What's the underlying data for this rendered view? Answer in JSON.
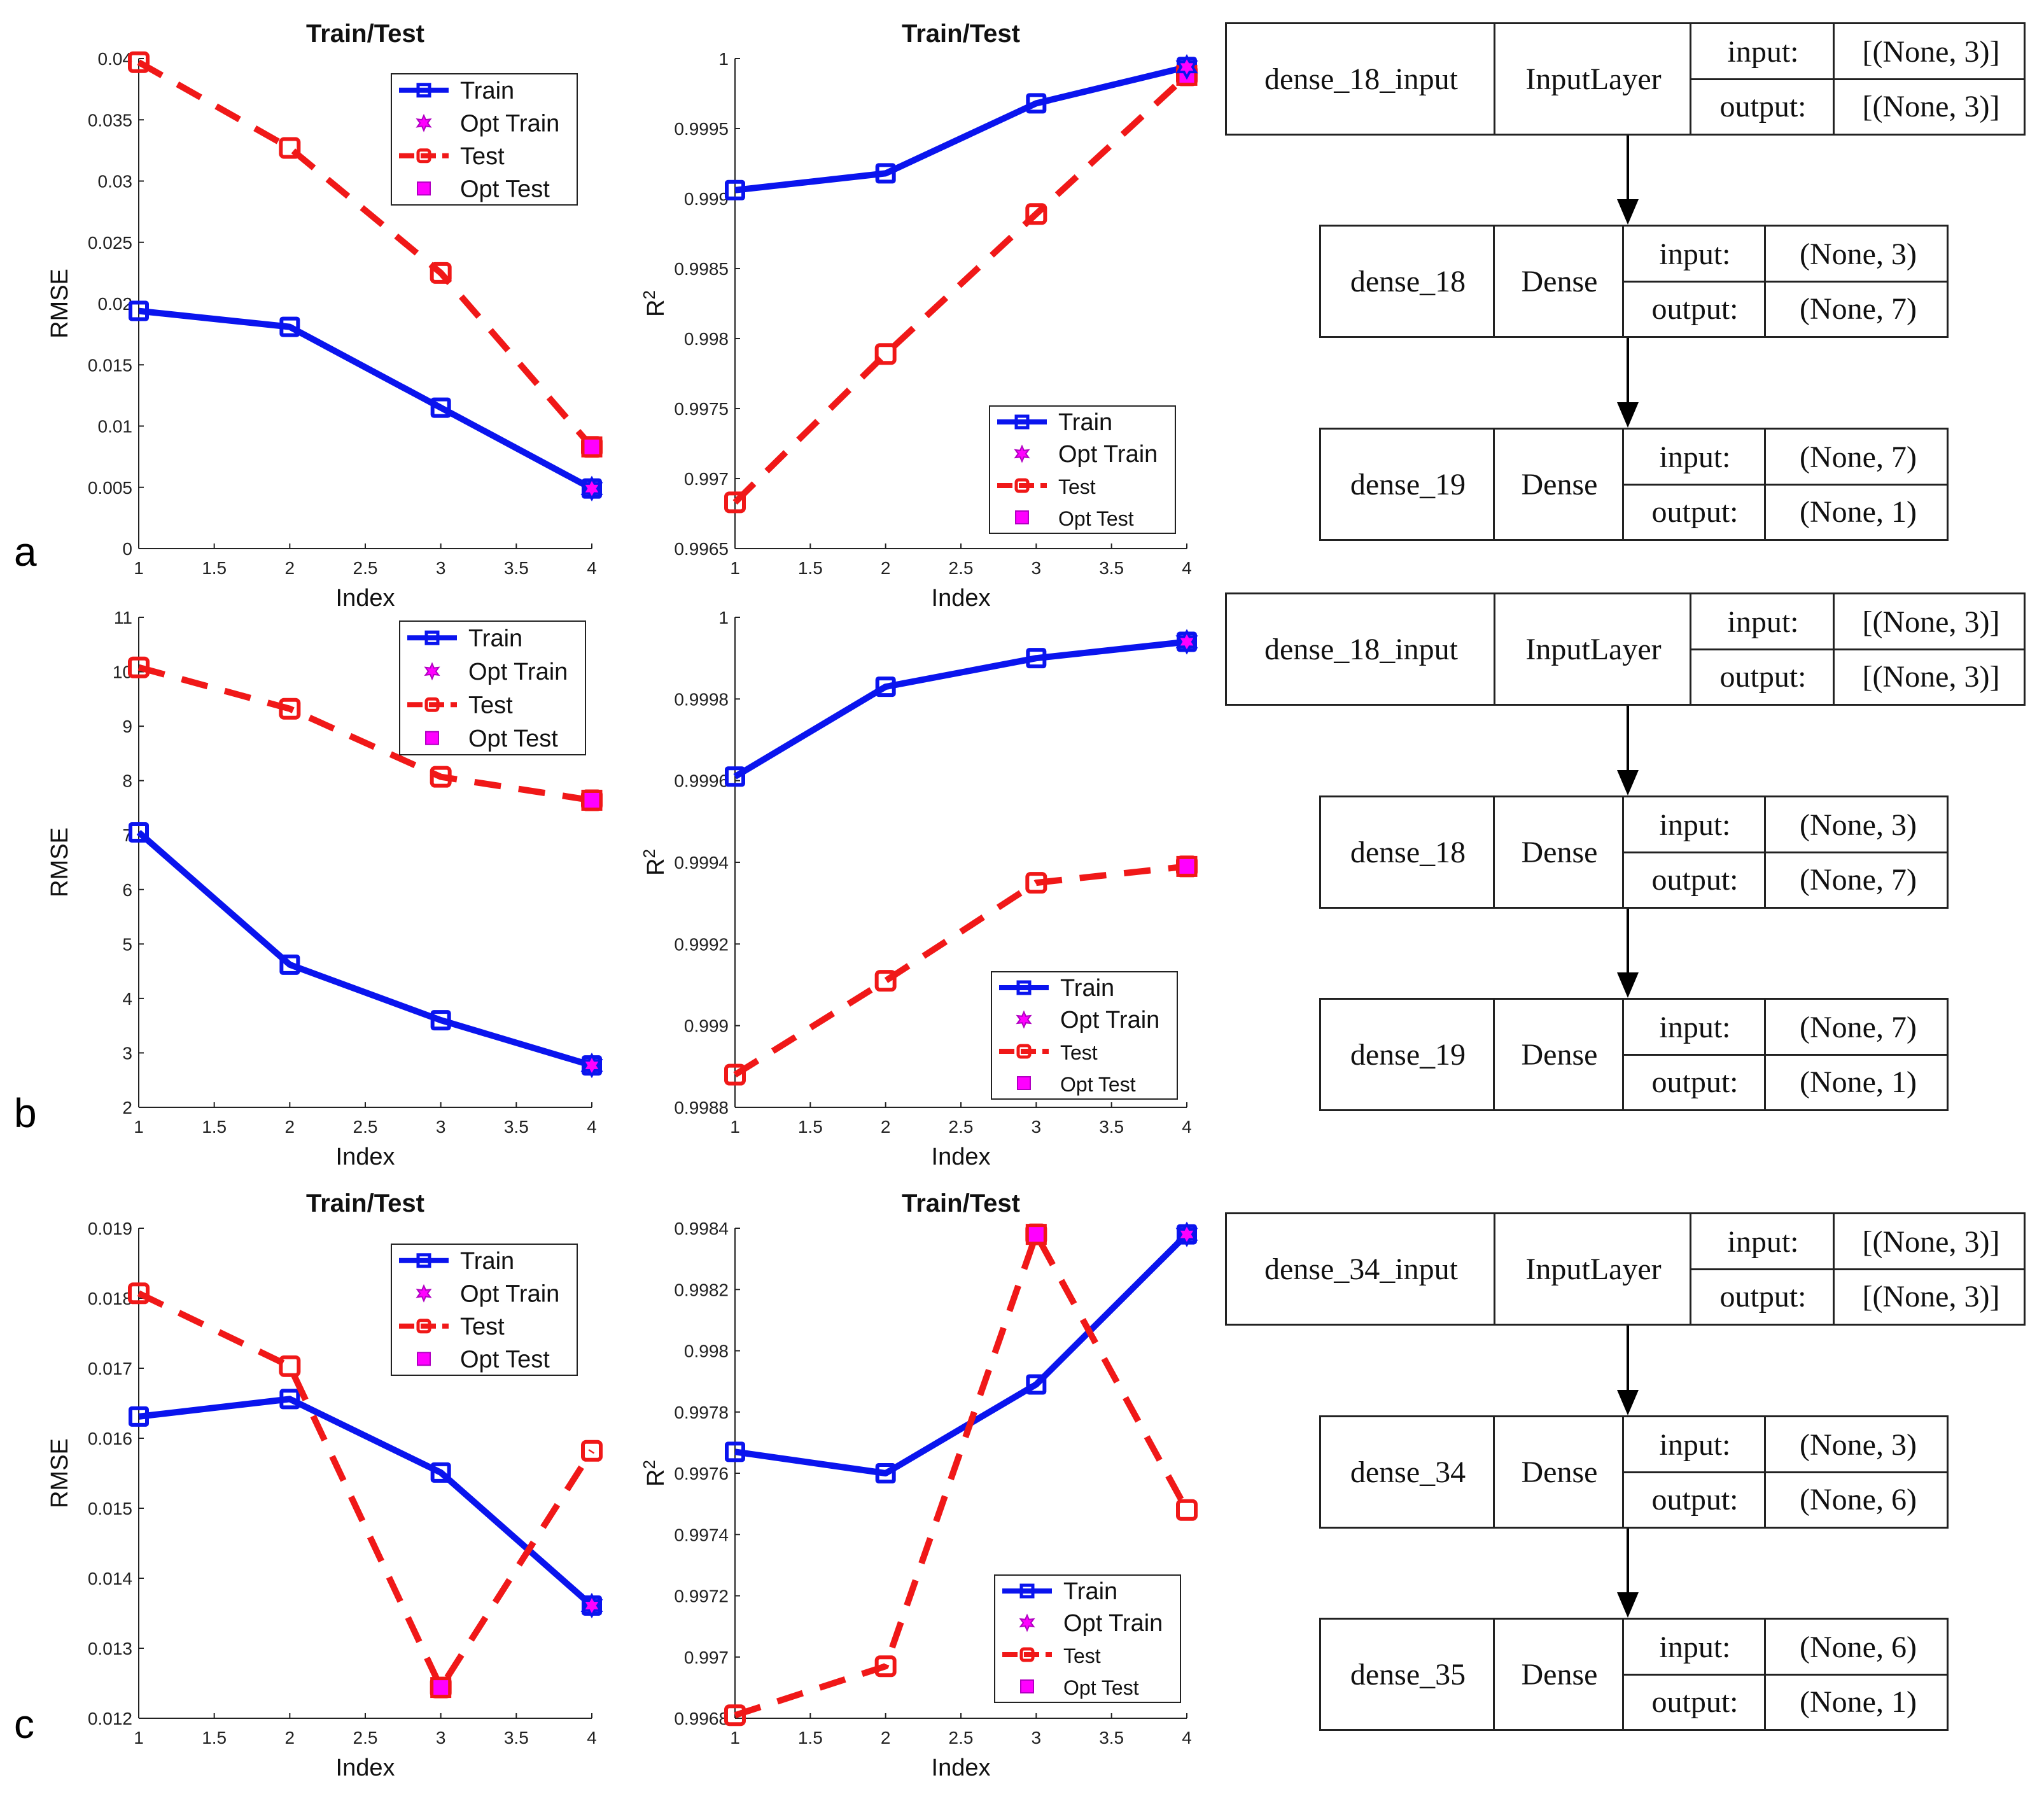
{
  "panel_labels": [
    "a",
    "b",
    "c"
  ],
  "chart_data": [
    {
      "id": "a-rmse",
      "type": "line",
      "title": "Train/Test",
      "xlabel": "Index",
      "ylabel": "RMSE",
      "x": [
        1,
        2,
        3,
        4
      ],
      "xlim": [
        1,
        4
      ],
      "ylim": [
        0,
        0.04
      ],
      "xticks": [
        "1",
        "1.5",
        "2",
        "2.5",
        "3",
        "3.5",
        "4"
      ],
      "yticks": [
        "0",
        "0.005",
        "0.01",
        "0.015",
        "0.02",
        "0.025",
        "0.03",
        "0.035",
        "0.04"
      ],
      "legend": [
        "Train",
        "Opt Train",
        "Test",
        "Opt Test"
      ],
      "legend_position": "top-right",
      "series": [
        {
          "name": "Train",
          "values": [
            0.0194,
            0.0181,
            0.0115,
            0.0049
          ]
        },
        {
          "name": "Test",
          "values": [
            0.0397,
            0.0327,
            0.0225,
            0.0083
          ]
        }
      ],
      "opt_train": {
        "x": 4,
        "y": 0.0049
      },
      "opt_test": {
        "x": 4,
        "y": 0.0083
      }
    },
    {
      "id": "a-r2",
      "type": "line",
      "title": "Train/Test",
      "xlabel": "Index",
      "ylabel": "R²",
      "x": [
        1,
        2,
        3,
        4
      ],
      "xlim": [
        1,
        4
      ],
      "ylim": [
        0.9965,
        1.0
      ],
      "xticks": [
        "1",
        "1.5",
        "2",
        "2.5",
        "3",
        "3.5",
        "4"
      ],
      "yticks": [
        "0.9965",
        "0.997",
        "0.9975",
        "0.998",
        "0.9985",
        "0.999",
        "0.9995",
        "1"
      ],
      "legend": [
        "Train",
        "Opt Train",
        "Test",
        "Opt Test"
      ],
      "legend_position": "bottom-right",
      "series": [
        {
          "name": "Train",
          "values": [
            0.99906,
            0.99918,
            0.99968,
            0.99994
          ]
        },
        {
          "name": "Test",
          "values": [
            0.99683,
            0.99789,
            0.99889,
            0.99988
          ]
        }
      ],
      "opt_train": {
        "x": 4,
        "y": 0.99994
      },
      "opt_test": {
        "x": 4,
        "y": 0.99988
      }
    },
    {
      "id": "b-rmse",
      "type": "line",
      "title": "",
      "xlabel": "Index",
      "ylabel": "RMSE",
      "x": [
        1,
        2,
        3,
        4
      ],
      "xlim": [
        1,
        4
      ],
      "ylim": [
        2,
        11
      ],
      "xticks": [
        "1",
        "1.5",
        "2",
        "2.5",
        "3",
        "3.5",
        "4"
      ],
      "yticks": [
        "2",
        "3",
        "4",
        "5",
        "6",
        "7",
        "8",
        "9",
        "10",
        "11"
      ],
      "legend": [
        "Train",
        "Opt Train",
        "Test",
        "Opt Test"
      ],
      "legend_position": "top-right",
      "series": [
        {
          "name": "Train",
          "values": [
            7.05,
            4.62,
            3.6,
            2.77
          ]
        },
        {
          "name": "Test",
          "values": [
            10.08,
            9.32,
            8.07,
            7.64
          ]
        }
      ],
      "opt_train": {
        "x": 4,
        "y": 2.77
      },
      "opt_test": {
        "x": 4,
        "y": 7.64
      }
    },
    {
      "id": "b-r2",
      "type": "line",
      "title": "",
      "xlabel": "Index",
      "ylabel": "R²",
      "x": [
        1,
        2,
        3,
        4
      ],
      "xlim": [
        1,
        4
      ],
      "ylim": [
        0.9988,
        1.0
      ],
      "xticks": [
        "1",
        "1.5",
        "2",
        "2.5",
        "3",
        "3.5",
        "4"
      ],
      "yticks": [
        "0.9988",
        "0.999",
        "0.9992",
        "0.9994",
        "0.9996",
        "0.9998",
        "1"
      ],
      "legend": [
        "Train",
        "Opt Train",
        "Test",
        "Opt Test"
      ],
      "legend_position": "bottom-right",
      "series": [
        {
          "name": "Train",
          "values": [
            0.99961,
            0.99983,
            0.9999,
            0.99994
          ]
        },
        {
          "name": "Test",
          "values": [
            0.99888,
            0.99911,
            0.99935,
            0.99939
          ]
        }
      ],
      "opt_train": {
        "x": 4,
        "y": 0.99994
      },
      "opt_test": {
        "x": 4,
        "y": 0.99939
      }
    },
    {
      "id": "c-rmse",
      "type": "line",
      "title": "Train/Test",
      "xlabel": "Index",
      "ylabel": "RMSE",
      "x": [
        1,
        2,
        3,
        4
      ],
      "xlim": [
        1,
        4
      ],
      "ylim": [
        0.012,
        0.019
      ],
      "xticks": [
        "1",
        "1.5",
        "2",
        "2.5",
        "3",
        "3.5",
        "4"
      ],
      "yticks": [
        "0.012",
        "0.013",
        "0.014",
        "0.015",
        "0.016",
        "0.017",
        "0.018",
        "0.019"
      ],
      "legend": [
        "Train",
        "Opt Train",
        "Test",
        "Opt Test"
      ],
      "legend_position": "top-right",
      "series": [
        {
          "name": "Train",
          "values": [
            0.01631,
            0.01656,
            0.01551,
            0.01361
          ]
        },
        {
          "name": "Test",
          "values": [
            0.01807,
            0.01703,
            0.01244,
            0.01582
          ]
        }
      ],
      "opt_train": {
        "x": 4,
        "y": 0.01361
      },
      "opt_test": {
        "x": 3,
        "y": 0.01244
      }
    },
    {
      "id": "c-r2",
      "type": "line",
      "title": "Train/Test",
      "xlabel": "Index",
      "ylabel": "R²",
      "x": [
        1,
        2,
        3,
        4
      ],
      "xlim": [
        1,
        4
      ],
      "ylim": [
        0.9968,
        0.9984
      ],
      "xticks": [
        "1",
        "1.5",
        "2",
        "2.5",
        "3",
        "3.5",
        "4"
      ],
      "yticks": [
        "0.9968",
        "0.997",
        "0.9972",
        "0.9974",
        "0.9976",
        "0.9978",
        "0.998",
        "0.9982",
        "0.9984"
      ],
      "legend": [
        "Train",
        "Opt Train",
        "Test",
        "Opt Test"
      ],
      "legend_position": "bottom-right",
      "series": [
        {
          "name": "Train",
          "values": [
            0.99767,
            0.9976,
            0.99789,
            0.99838
          ]
        },
        {
          "name": "Test",
          "values": [
            0.99681,
            0.99697,
            0.99838,
            0.99748
          ]
        }
      ],
      "opt_train": {
        "x": 4,
        "y": 0.99838
      },
      "opt_test": {
        "x": 3,
        "y": 0.99838
      }
    }
  ],
  "diagrams": [
    {
      "input": {
        "name": "dense_18_input",
        "type": "InputLayer",
        "in_label": "input:",
        "in_value": "[(None, 3)]",
        "out_label": "output:",
        "out_value": "[(None, 3)]"
      },
      "layers": [
        {
          "name": "dense_18",
          "type": "Dense",
          "in_label": "input:",
          "in_value": "(None, 3)",
          "out_label": "output:",
          "out_value": "(None, 7)"
        },
        {
          "name": "dense_19",
          "type": "Dense",
          "in_label": "input:",
          "in_value": "(None, 7)",
          "out_label": "output:",
          "out_value": "(None, 1)"
        }
      ]
    },
    {
      "input": {
        "name": "dense_18_input",
        "type": "InputLayer",
        "in_label": "input:",
        "in_value": "[(None, 3)]",
        "out_label": "output:",
        "out_value": "[(None, 3)]"
      },
      "layers": [
        {
          "name": "dense_18",
          "type": "Dense",
          "in_label": "input:",
          "in_value": "(None, 3)",
          "out_label": "output:",
          "out_value": "(None, 7)"
        },
        {
          "name": "dense_19",
          "type": "Dense",
          "in_label": "input:",
          "in_value": "(None, 7)",
          "out_label": "output:",
          "out_value": "(None, 1)"
        }
      ]
    },
    {
      "input": {
        "name": "dense_34_input",
        "type": "InputLayer",
        "in_label": "input:",
        "in_value": "[(None, 3)]",
        "out_label": "output:",
        "out_value": "[(None, 3)]"
      },
      "layers": [
        {
          "name": "dense_34",
          "type": "Dense",
          "in_label": "input:",
          "in_value": "(None, 3)",
          "out_label": "output:",
          "out_value": "(None, 6)"
        },
        {
          "name": "dense_35",
          "type": "Dense",
          "in_label": "input:",
          "in_value": "(None, 6)",
          "out_label": "output:",
          "out_value": "(None, 1)"
        }
      ]
    }
  ]
}
